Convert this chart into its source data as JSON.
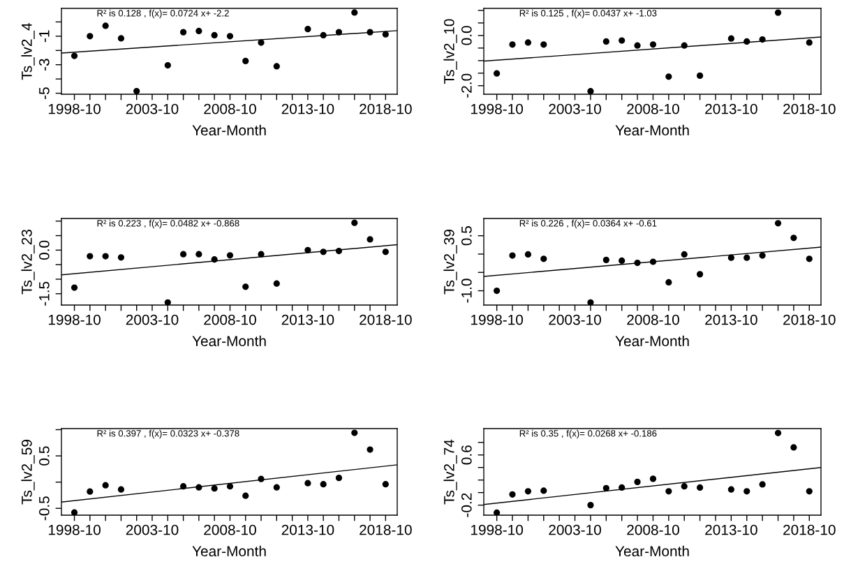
{
  "chart_data": [
    {
      "type": "scatter",
      "ylabel": "Ts_lv2_4",
      "xlabel": "Year-Month",
      "annotations": [
        "R² is 0.128 , f(x)= 0.0724 x+ -2.2"
      ],
      "grid": false,
      "legend": false,
      "x": [
        "1998-10",
        "1999-10",
        "2000-10",
        "2001-10",
        "2002-10",
        "2003-10",
        "2004-10",
        "2005-10",
        "2006-10",
        "2007-10",
        "2008-10",
        "2009-10",
        "2010-10",
        "2011-10",
        "2012-10",
        "2013-10",
        "2014-10",
        "2015-10",
        "2016-10",
        "2017-10",
        "2018-10"
      ],
      "xlim": [
        "1997-12",
        "2019-07"
      ],
      "xticks": [
        {
          "value": "1998-10",
          "label": "1998-10"
        },
        {
          "value": "1999-10",
          "label": null
        },
        {
          "value": "2000-10",
          "label": null
        },
        {
          "value": "2001-10",
          "label": null
        },
        {
          "value": "2002-10",
          "label": null
        },
        {
          "value": "2003-10",
          "label": "2003-10"
        },
        {
          "value": "2004-10",
          "label": null
        },
        {
          "value": "2005-10",
          "label": null
        },
        {
          "value": "2006-10",
          "label": null
        },
        {
          "value": "2007-10",
          "label": null
        },
        {
          "value": "2008-10",
          "label": "2008-10"
        },
        {
          "value": "2009-10",
          "label": null
        },
        {
          "value": "2010-10",
          "label": null
        },
        {
          "value": "2011-10",
          "label": null
        },
        {
          "value": "2012-10",
          "label": null
        },
        {
          "value": "2013-10",
          "label": "2013-10"
        },
        {
          "value": "2014-10",
          "label": null
        },
        {
          "value": "2015-10",
          "label": null
        },
        {
          "value": "2016-10",
          "label": null
        },
        {
          "value": "2017-10",
          "label": null
        },
        {
          "value": "2018-10",
          "label": "2018-10"
        }
      ],
      "ylim": [
        -5.07,
        0.95
      ],
      "yticks": [
        -5,
        {
          "value": -4,
          "label": null
        },
        -3,
        {
          "value": -2,
          "label": null
        },
        -1,
        {
          "value": 0,
          "label": null
        }
      ],
      "series": [
        {
          "color": "#000000",
          "marker": "circle",
          "values": [
            -2.38,
            -1.0,
            -0.27,
            -1.15,
            -4.85,
            null,
            -3.04,
            -0.72,
            -0.64,
            -0.93,
            -1.0,
            -2.74,
            -1.45,
            -3.11,
            null,
            -0.5,
            -0.93,
            -0.72,
            0.66,
            -0.72,
            -0.87
          ]
        },
        {
          "type": "line",
          "color": "#000000",
          "x": [
            "1997-12",
            "2019-07"
          ],
          "values": [
            -2.18,
            -0.61
          ]
        }
      ]
    },
    {
      "type": "scatter",
      "ylabel": "Ts_lv2_10",
      "xlabel": "Year-Month",
      "annotations": [
        "R² is 0.125 , f(x)= 0.0437 x+ -1.03"
      ],
      "grid": false,
      "legend": false,
      "x": [
        "1998-10",
        "1999-10",
        "2000-10",
        "2001-10",
        "2002-10",
        "2003-10",
        "2004-10",
        "2005-10",
        "2006-10",
        "2007-10",
        "2008-10",
        "2009-10",
        "2010-10",
        "2011-10",
        "2012-10",
        "2013-10",
        "2014-10",
        "2015-10",
        "2016-10",
        "2017-10",
        "2018-10"
      ],
      "xlim": [
        "1997-12",
        "2019-07"
      ],
      "xticks": [
        {
          "value": "1998-10",
          "label": "1998-10"
        },
        {
          "value": "1999-10",
          "label": null
        },
        {
          "value": "2000-10",
          "label": null
        },
        {
          "value": "2001-10",
          "label": null
        },
        {
          "value": "2002-10",
          "label": null
        },
        {
          "value": "2003-10",
          "label": "2003-10"
        },
        {
          "value": "2004-10",
          "label": null
        },
        {
          "value": "2005-10",
          "label": null
        },
        {
          "value": "2006-10",
          "label": null
        },
        {
          "value": "2007-10",
          "label": null
        },
        {
          "value": "2008-10",
          "label": "2008-10"
        },
        {
          "value": "2009-10",
          "label": null
        },
        {
          "value": "2010-10",
          "label": null
        },
        {
          "value": "2011-10",
          "label": null
        },
        {
          "value": "2012-10",
          "label": null
        },
        {
          "value": "2013-10",
          "label": "2013-10"
        },
        {
          "value": "2014-10",
          "label": null
        },
        {
          "value": "2015-10",
          "label": null
        },
        {
          "value": "2016-10",
          "label": null
        },
        {
          "value": "2017-10",
          "label": null
        },
        {
          "value": "2018-10",
          "label": "2018-10"
        }
      ],
      "ylim": [
        -2.34,
        1.08
      ],
      "yticks": [
        {
          "value": -2.0,
          "label": "-2.0"
        },
        {
          "value": -1.5,
          "label": null
        },
        {
          "value": -1.0,
          "label": null
        },
        {
          "value": -0.5,
          "label": null
        },
        {
          "value": 0.0,
          "label": "0.0"
        },
        {
          "value": 0.5,
          "label": null
        },
        {
          "value": 1.0,
          "label": null
        }
      ],
      "series": [
        {
          "color": "#000000",
          "marker": "circle",
          "values": [
            -1.51,
            -0.36,
            -0.28,
            -0.36,
            null,
            null,
            -2.22,
            -0.24,
            -0.2,
            -0.4,
            -0.36,
            -1.64,
            -0.4,
            -1.6,
            null,
            -0.12,
            -0.24,
            -0.16,
            0.91,
            null,
            -0.28
          ]
        },
        {
          "type": "line",
          "color": "#000000",
          "x": [
            "1997-12",
            "2019-07"
          ],
          "values": [
            -1.02,
            -0.06
          ]
        }
      ]
    },
    {
      "type": "scatter",
      "ylabel": "Ts_lv2_23",
      "xlabel": "Year-Month",
      "annotations": [
        "R² is 0.223 , f(x)= 0.0482 x+ -0.868"
      ],
      "grid": false,
      "legend": false,
      "x": [
        "1998-10",
        "1999-10",
        "2000-10",
        "2001-10",
        "2002-10",
        "2003-10",
        "2004-10",
        "2005-10",
        "2006-10",
        "2007-10",
        "2008-10",
        "2009-10",
        "2010-10",
        "2011-10",
        "2012-10",
        "2013-10",
        "2014-10",
        "2015-10",
        "2016-10",
        "2017-10",
        "2018-10"
      ],
      "xlim": [
        "1997-12",
        "2019-07"
      ],
      "xticks": [
        {
          "value": "1998-10",
          "label": "1998-10"
        },
        {
          "value": "1999-10",
          "label": null
        },
        {
          "value": "2000-10",
          "label": null
        },
        {
          "value": "2001-10",
          "label": null
        },
        {
          "value": "2002-10",
          "label": null
        },
        {
          "value": "2003-10",
          "label": "2003-10"
        },
        {
          "value": "2004-10",
          "label": null
        },
        {
          "value": "2005-10",
          "label": null
        },
        {
          "value": "2006-10",
          "label": null
        },
        {
          "value": "2007-10",
          "label": null
        },
        {
          "value": "2008-10",
          "label": "2008-10"
        },
        {
          "value": "2009-10",
          "label": null
        },
        {
          "value": "2010-10",
          "label": null
        },
        {
          "value": "2011-10",
          "label": null
        },
        {
          "value": "2012-10",
          "label": null
        },
        {
          "value": "2013-10",
          "label": "2013-10"
        },
        {
          "value": "2014-10",
          "label": null
        },
        {
          "value": "2015-10",
          "label": null
        },
        {
          "value": "2016-10",
          "label": null
        },
        {
          "value": "2017-10",
          "label": null
        },
        {
          "value": "2018-10",
          "label": "2018-10"
        }
      ],
      "ylim": [
        -1.89,
        1.09
      ],
      "yticks": [
        {
          "value": -1.5,
          "label": "-1.5"
        },
        {
          "value": -1.0,
          "label": null
        },
        {
          "value": -0.5,
          "label": null
        },
        {
          "value": 0.0,
          "label": "0.0"
        },
        {
          "value": 0.5,
          "label": null
        },
        {
          "value": 1.0,
          "label": null
        }
      ],
      "series": [
        {
          "color": "#000000",
          "marker": "circle",
          "values": [
            -1.29,
            -0.21,
            -0.21,
            -0.25,
            null,
            null,
            -1.8,
            -0.14,
            -0.14,
            -0.32,
            -0.18,
            -1.26,
            -0.14,
            -1.15,
            null,
            0.0,
            -0.06,
            -0.03,
            0.94,
            0.37,
            -0.06
          ]
        },
        {
          "type": "line",
          "color": "#000000",
          "x": [
            "1997-12",
            "2019-07"
          ],
          "values": [
            -0.85,
            0.19
          ]
        }
      ]
    },
    {
      "type": "scatter",
      "ylabel": "Ts_lv2_39",
      "xlabel": "Year-Month",
      "annotations": [
        "R² is 0.226 , f(x)= 0.0364 x+ -0.61"
      ],
      "grid": false,
      "legend": false,
      "x": [
        "1998-10",
        "1999-10",
        "2000-10",
        "2001-10",
        "2002-10",
        "2003-10",
        "2004-10",
        "2005-10",
        "2006-10",
        "2007-10",
        "2008-10",
        "2009-10",
        "2010-10",
        "2011-10",
        "2012-10",
        "2013-10",
        "2014-10",
        "2015-10",
        "2016-10",
        "2017-10",
        "2018-10"
      ],
      "xlim": [
        "1997-12",
        "2019-07"
      ],
      "xticks": [
        {
          "value": "1998-10",
          "label": "1998-10"
        },
        {
          "value": "1999-10",
          "label": null
        },
        {
          "value": "2000-10",
          "label": null
        },
        {
          "value": "2001-10",
          "label": null
        },
        {
          "value": "2002-10",
          "label": null
        },
        {
          "value": "2003-10",
          "label": "2003-10"
        },
        {
          "value": "2004-10",
          "label": null
        },
        {
          "value": "2005-10",
          "label": null
        },
        {
          "value": "2006-10",
          "label": null
        },
        {
          "value": "2007-10",
          "label": null
        },
        {
          "value": "2008-10",
          "label": "2008-10"
        },
        {
          "value": "2009-10",
          "label": null
        },
        {
          "value": "2010-10",
          "label": null
        },
        {
          "value": "2011-10",
          "label": null
        },
        {
          "value": "2012-10",
          "label": null
        },
        {
          "value": "2013-10",
          "label": "2013-10"
        },
        {
          "value": "2014-10",
          "label": null
        },
        {
          "value": "2015-10",
          "label": null
        },
        {
          "value": "2016-10",
          "label": null
        },
        {
          "value": "2017-10",
          "label": null
        },
        {
          "value": "2018-10",
          "label": "2018-10"
        }
      ],
      "ylim": [
        -1.39,
        0.97
      ],
      "yticks": [
        {
          "value": -1.0,
          "label": "-1.0"
        },
        {
          "value": -0.5,
          "label": null
        },
        {
          "value": 0.0,
          "label": null
        },
        0.5
      ],
      "series": [
        {
          "color": "#000000",
          "marker": "circle",
          "values": [
            -1.0,
            -0.04,
            -0.01,
            -0.13,
            null,
            null,
            -1.32,
            -0.16,
            -0.18,
            -0.24,
            -0.21,
            -0.77,
            -0.01,
            -0.55,
            null,
            -0.1,
            -0.1,
            -0.04,
            0.84,
            0.44,
            -0.13
          ]
        },
        {
          "type": "line",
          "color": "#000000",
          "x": [
            "1997-12",
            "2019-07"
          ],
          "values": [
            -0.61,
            0.19
          ]
        }
      ]
    },
    {
      "type": "scatter",
      "ylabel": "Ts_lv2_59",
      "xlabel": "Year-Month",
      "annotations": [
        "R² is 0.397 , f(x)= 0.0323 x+ -0.378"
      ],
      "grid": false,
      "legend": false,
      "x": [
        "1998-10",
        "1999-10",
        "2000-10",
        "2001-10",
        "2002-10",
        "2003-10",
        "2004-10",
        "2005-10",
        "2006-10",
        "2007-10",
        "2008-10",
        "2009-10",
        "2010-10",
        "2011-10",
        "2012-10",
        "2013-10",
        "2014-10",
        "2015-10",
        "2016-10",
        "2017-10",
        "2018-10"
      ],
      "xlim": [
        "1997-12",
        "2019-07"
      ],
      "xticks": [
        {
          "value": "1998-10",
          "label": "1998-10"
        },
        {
          "value": "1999-10",
          "label": null
        },
        {
          "value": "2000-10",
          "label": null
        },
        {
          "value": "2001-10",
          "label": null
        },
        {
          "value": "2002-10",
          "label": null
        },
        {
          "value": "2003-10",
          "label": "2003-10"
        },
        {
          "value": "2004-10",
          "label": null
        },
        {
          "value": "2005-10",
          "label": null
        },
        {
          "value": "2006-10",
          "label": null
        },
        {
          "value": "2007-10",
          "label": null
        },
        {
          "value": "2008-10",
          "label": "2008-10"
        },
        {
          "value": "2009-10",
          "label": null
        },
        {
          "value": "2010-10",
          "label": null
        },
        {
          "value": "2011-10",
          "label": null
        },
        {
          "value": "2012-10",
          "label": null
        },
        {
          "value": "2013-10",
          "label": "2013-10"
        },
        {
          "value": "2014-10",
          "label": null
        },
        {
          "value": "2015-10",
          "label": null
        },
        {
          "value": "2016-10",
          "label": null
        },
        {
          "value": "2017-10",
          "label": null
        },
        {
          "value": "2018-10",
          "label": "2018-10"
        }
      ],
      "ylim": [
        -0.63,
        1.02
      ],
      "yticks": [
        -0.5,
        {
          "value": 0.0,
          "label": null
        },
        0.5,
        {
          "value": 1.0,
          "label": null
        }
      ],
      "series": [
        {
          "color": "#000000",
          "marker": "circle",
          "values": [
            -0.58,
            -0.18,
            -0.06,
            -0.14,
            null,
            null,
            null,
            -0.08,
            -0.1,
            -0.12,
            -0.08,
            -0.26,
            0.06,
            -0.1,
            null,
            -0.02,
            -0.04,
            0.08,
            0.94,
            0.62,
            -0.04
          ]
        },
        {
          "type": "line",
          "color": "#000000",
          "x": [
            "1997-12",
            "2019-07"
          ],
          "values": [
            -0.38,
            0.33
          ]
        }
      ]
    },
    {
      "type": "scatter",
      "ylabel": "Ts_lv2_74",
      "xlabel": "Year-Month",
      "annotations": [
        "R² is 0.35 , f(x)= 0.0268 x+ -0.186"
      ],
      "grid": false,
      "legend": false,
      "x": [
        "1998-10",
        "1999-10",
        "2000-10",
        "2001-10",
        "2002-10",
        "2003-10",
        "2004-10",
        "2005-10",
        "2006-10",
        "2007-10",
        "2008-10",
        "2009-10",
        "2010-10",
        "2011-10",
        "2012-10",
        "2013-10",
        "2014-10",
        "2015-10",
        "2016-10",
        "2017-10",
        "2018-10"
      ],
      "xlim": [
        "1997-12",
        "2019-07"
      ],
      "xticks": [
        {
          "value": "1998-10",
          "label": "1998-10"
        },
        {
          "value": "1999-10",
          "label": null
        },
        {
          "value": "2000-10",
          "label": null
        },
        {
          "value": "2001-10",
          "label": null
        },
        {
          "value": "2002-10",
          "label": null
        },
        {
          "value": "2003-10",
          "label": "2003-10"
        },
        {
          "value": "2004-10",
          "label": null
        },
        {
          "value": "2005-10",
          "label": null
        },
        {
          "value": "2006-10",
          "label": null
        },
        {
          "value": "2007-10",
          "label": null
        },
        {
          "value": "2008-10",
          "label": "2008-10"
        },
        {
          "value": "2009-10",
          "label": null
        },
        {
          "value": "2010-10",
          "label": null
        },
        {
          "value": "2011-10",
          "label": null
        },
        {
          "value": "2012-10",
          "label": null
        },
        {
          "value": "2013-10",
          "label": "2013-10"
        },
        {
          "value": "2014-10",
          "label": null
        },
        {
          "value": "2015-10",
          "label": null
        },
        {
          "value": "2016-10",
          "label": null
        },
        {
          "value": "2017-10",
          "label": null
        },
        {
          "value": "2018-10",
          "label": "2018-10"
        }
      ],
      "ylim": [
        -0.36,
        1.02
      ],
      "yticks": [
        -0.2,
        {
          "value": 0.0,
          "label": null
        },
        {
          "value": 0.2,
          "label": null
        },
        {
          "value": 0.4,
          "label": null
        },
        0.6,
        {
          "value": 0.8,
          "label": null
        }
      ],
      "series": [
        {
          "color": "#000000",
          "marker": "circle",
          "values": [
            -0.32,
            -0.03,
            0.02,
            0.03,
            null,
            null,
            -0.2,
            0.07,
            0.08,
            0.17,
            0.22,
            0.02,
            0.1,
            0.08,
            null,
            0.05,
            0.02,
            0.13,
            0.95,
            0.72,
            0.02
          ]
        },
        {
          "type": "line",
          "color": "#000000",
          "x": [
            "1997-12",
            "2019-07"
          ],
          "values": [
            -0.19,
            0.4
          ]
        }
      ]
    }
  ]
}
